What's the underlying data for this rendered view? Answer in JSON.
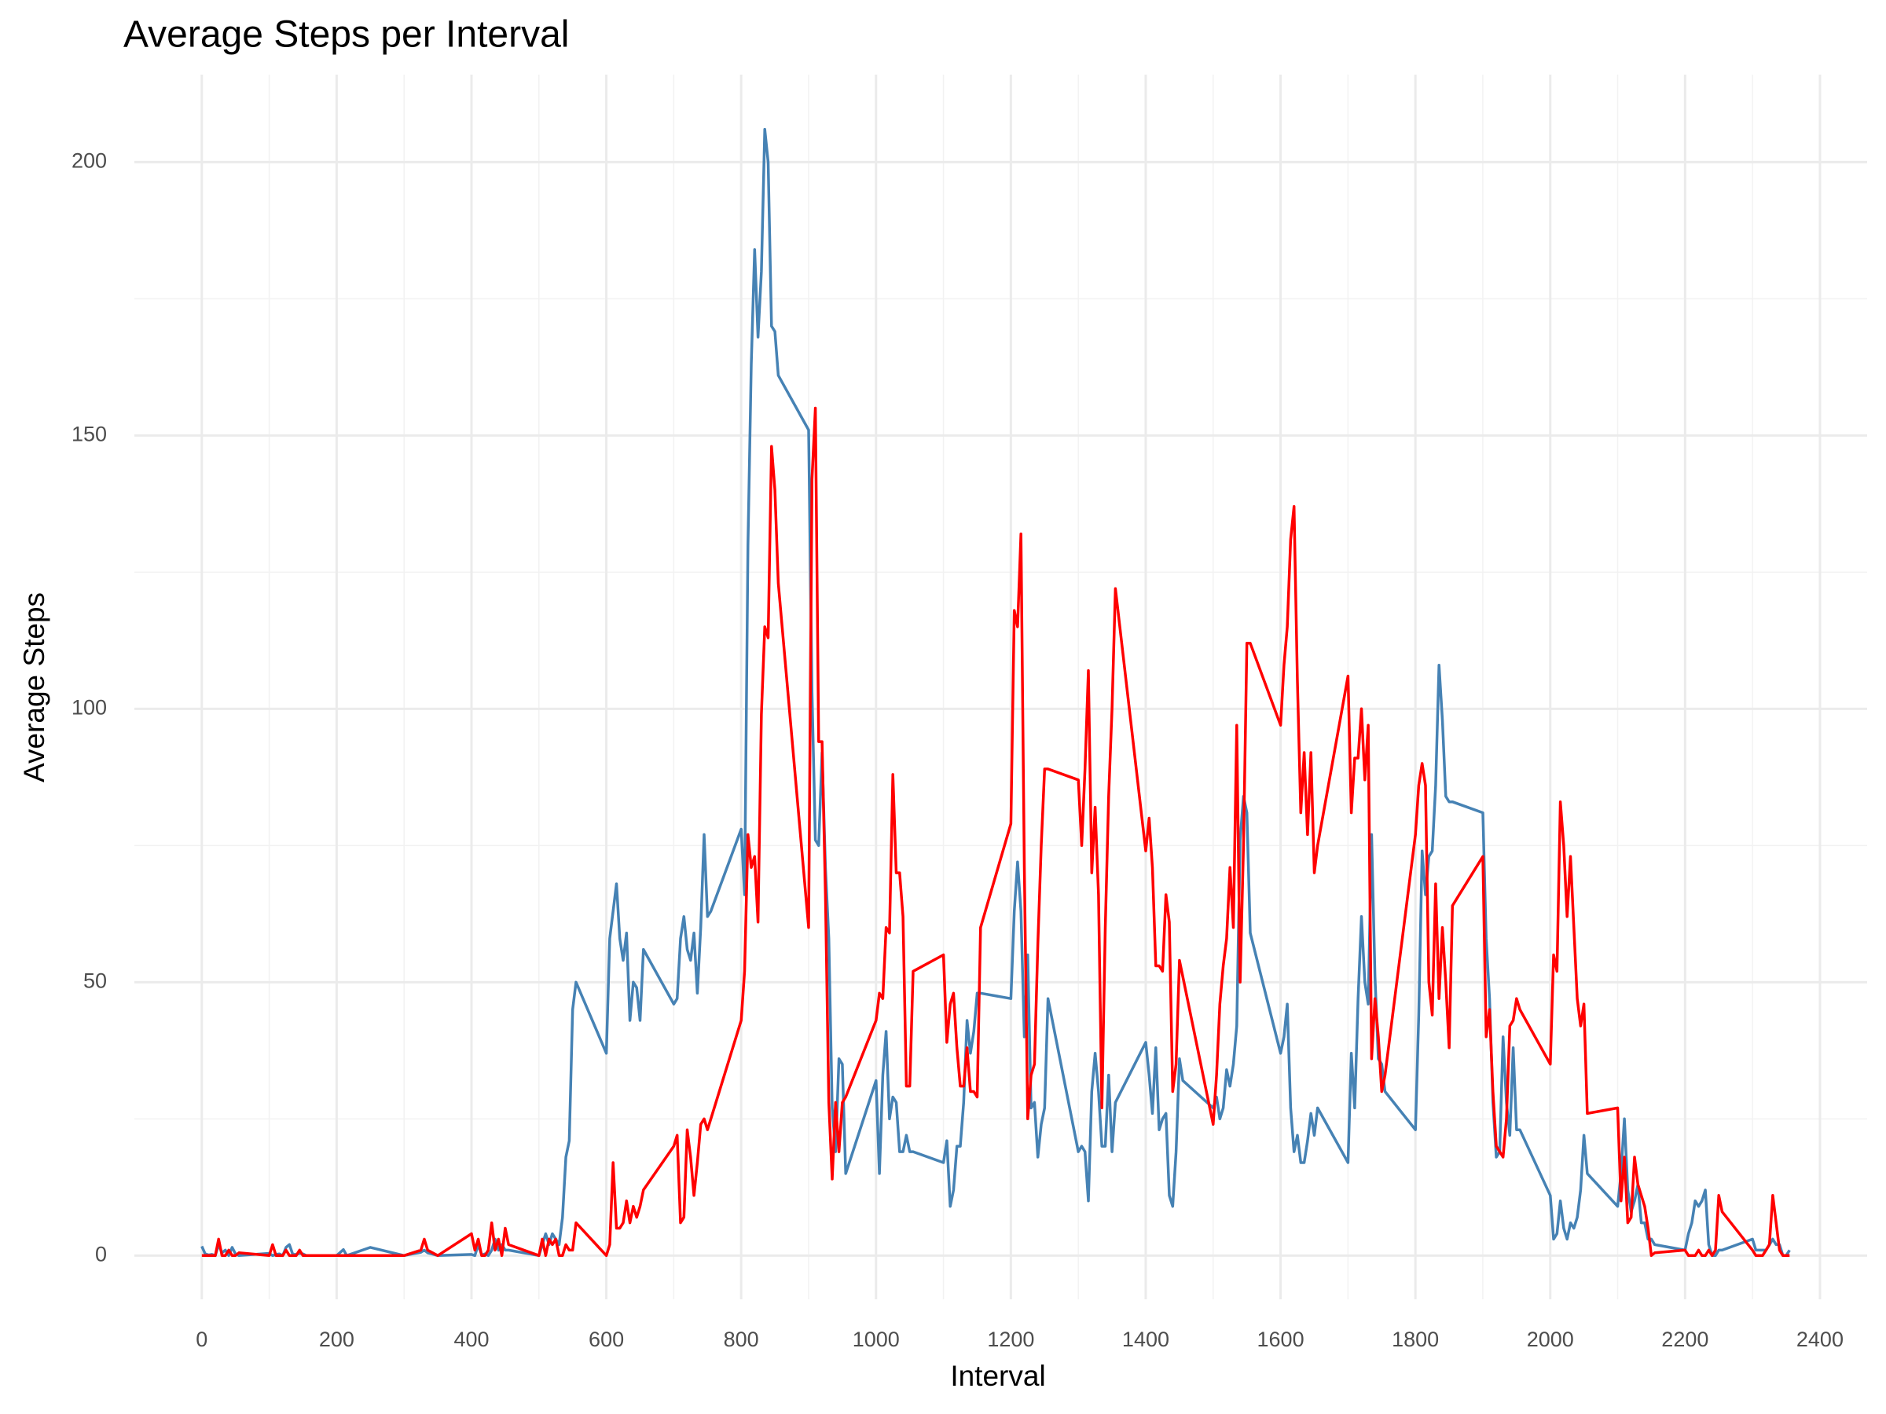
{
  "chart_data": {
    "type": "line",
    "title": "Average Steps per Interval",
    "x_label": "Interval",
    "y_label": "Average Steps",
    "x": [
      0,
      5,
      10,
      15,
      20,
      25,
      30,
      35,
      40,
      45,
      50,
      55,
      100,
      105,
      110,
      115,
      120,
      125,
      130,
      135,
      140,
      145,
      150,
      155,
      200,
      210,
      215,
      250,
      300,
      325,
      330,
      335,
      350,
      400,
      405,
      410,
      415,
      420,
      425,
      430,
      435,
      440,
      445,
      450,
      455,
      500,
      505,
      510,
      515,
      520,
      525,
      530,
      535,
      540,
      545,
      550,
      555,
      600,
      605,
      610,
      615,
      620,
      625,
      630,
      635,
      640,
      645,
      650,
      655,
      700,
      705,
      710,
      715,
      720,
      725,
      730,
      735,
      740,
      745,
      750,
      755,
      800,
      805,
      810,
      815,
      820,
      825,
      830,
      835,
      840,
      845,
      850,
      855,
      900,
      905,
      910,
      915,
      920,
      925,
      930,
      935,
      940,
      945,
      950,
      955,
      1000,
      1005,
      1010,
      1015,
      1020,
      1025,
      1030,
      1035,
      1040,
      1045,
      1050,
      1055,
      1100,
      1105,
      1110,
      1115,
      1120,
      1125,
      1130,
      1135,
      1140,
      1145,
      1150,
      1155,
      1200,
      1205,
      1210,
      1215,
      1220,
      1225,
      1230,
      1235,
      1240,
      1245,
      1250,
      1255,
      1300,
      1305,
      1310,
      1315,
      1320,
      1325,
      1330,
      1335,
      1340,
      1345,
      1350,
      1355,
      1400,
      1405,
      1410,
      1415,
      1420,
      1425,
      1430,
      1435,
      1440,
      1445,
      1450,
      1455,
      1500,
      1505,
      1510,
      1515,
      1520,
      1525,
      1530,
      1535,
      1540,
      1545,
      1550,
      1555,
      1600,
      1605,
      1610,
      1615,
      1620,
      1625,
      1630,
      1635,
      1640,
      1645,
      1650,
      1655,
      1700,
      1705,
      1710,
      1715,
      1720,
      1725,
      1730,
      1735,
      1740,
      1745,
      1750,
      1755,
      1800,
      1805,
      1810,
      1815,
      1820,
      1825,
      1830,
      1835,
      1840,
      1845,
      1850,
      1855,
      1900,
      1905,
      1910,
      1915,
      1920,
      1925,
      1930,
      1935,
      1940,
      1945,
      1950,
      1955,
      2000,
      2005,
      2010,
      2015,
      2020,
      2025,
      2030,
      2035,
      2040,
      2045,
      2050,
      2055,
      2100,
      2105,
      2110,
      2115,
      2120,
      2125,
      2130,
      2135,
      2140,
      2145,
      2150,
      2155,
      2200,
      2205,
      2210,
      2215,
      2220,
      2225,
      2230,
      2235,
      2240,
      2245,
      2250,
      2255,
      2300,
      2305,
      2310,
      2315,
      2320,
      2325,
      2330,
      2335,
      2340,
      2345,
      2350,
      2355
    ],
    "series": [
      {
        "color": "#4682b4",
        "values": [
          1.7,
          0.3,
          0.1,
          0.2,
          0,
          2,
          0.5,
          1,
          0,
          1.5,
          0.3,
          0,
          0.4,
          0,
          0.2,
          0.3,
          0,
          1.5,
          2,
          0.2,
          0.2,
          0.4,
          0.3,
          0,
          0,
          1.1,
          0,
          1.5,
          0,
          0.6,
          1,
          0.5,
          0,
          0.2,
          0,
          2,
          0.1,
          0.3,
          0,
          1,
          3,
          1,
          2,
          1,
          1,
          0,
          2,
          4,
          2,
          4,
          3,
          2,
          7,
          18,
          21,
          45,
          50,
          37,
          58,
          63,
          68,
          58,
          54,
          59,
          43,
          50,
          49,
          43,
          56,
          46,
          47,
          58,
          62,
          56,
          54,
          59,
          48,
          60,
          77,
          62,
          63,
          78,
          66,
          130,
          163,
          184,
          168,
          180,
          206,
          200,
          170,
          169,
          161,
          151,
          103,
          76,
          75,
          92,
          71,
          58,
          27,
          19,
          36,
          35,
          15,
          32,
          15,
          33,
          41,
          25,
          29,
          28,
          19,
          19,
          22,
          19,
          19,
          17,
          21,
          9,
          12,
          20,
          20,
          28,
          43,
          37,
          41,
          48,
          48,
          47,
          63,
          72,
          63,
          40,
          55,
          27,
          28,
          18,
          24,
          27,
          47,
          19,
          20,
          19,
          10,
          30,
          37,
          30,
          20,
          20,
          33,
          19,
          28,
          39,
          33,
          26,
          38,
          23,
          25,
          26,
          11,
          9,
          19,
          36,
          32,
          27,
          29,
          25,
          27,
          34,
          31,
          35,
          42,
          76,
          84,
          81,
          59,
          37,
          40,
          46,
          27,
          19,
          22,
          17,
          17,
          21,
          26,
          22,
          27,
          17,
          37,
          27,
          47,
          62,
          50,
          46,
          77,
          51,
          36,
          35,
          30,
          23,
          44,
          74,
          66,
          73,
          74,
          86,
          108,
          98,
          84,
          83,
          83,
          81,
          58,
          47,
          28,
          18,
          19,
          40,
          28,
          22,
          38,
          23,
          23,
          11,
          3,
          4,
          10,
          5,
          3,
          6,
          5,
          7,
          12,
          22,
          15,
          9,
          15,
          25,
          12,
          8,
          10,
          13,
          6,
          6,
          3,
          3,
          2,
          1,
          4,
          6,
          10,
          9,
          10,
          12,
          2,
          0,
          0,
          1,
          1,
          3,
          1,
          1,
          1,
          1,
          2,
          3,
          2,
          2,
          0,
          0,
          1
        ]
      },
      {
        "color": "#ff0000",
        "values": [
          0,
          0,
          0,
          0,
          0,
          3,
          0,
          0,
          1,
          0,
          0,
          0.5,
          0,
          2,
          0,
          0,
          0,
          1,
          0,
          0,
          0,
          1,
          0,
          0,
          0,
          0,
          0,
          0,
          0,
          1,
          3,
          1,
          0,
          4,
          1,
          3,
          0,
          0,
          1,
          6,
          1,
          3,
          0,
          5,
          2,
          0,
          3,
          0,
          3,
          2,
          3,
          0,
          0,
          2,
          1,
          1,
          6,
          0,
          2,
          17,
          5,
          5,
          6,
          10,
          6,
          9,
          7,
          9,
          12,
          20,
          22,
          6,
          7,
          23,
          18,
          11,
          17,
          24,
          25,
          23,
          25,
          43,
          52,
          77,
          71,
          73,
          61,
          99,
          115,
          113,
          148,
          140,
          123,
          60,
          142,
          155,
          94,
          94,
          66,
          28,
          14,
          28,
          19,
          28,
          29,
          43,
          48,
          47,
          60,
          59,
          88,
          70,
          70,
          62,
          31,
          31,
          52,
          55,
          39,
          46,
          48,
          38,
          31,
          31,
          38,
          30,
          30,
          29,
          60,
          79,
          118,
          115,
          132,
          71,
          25,
          33,
          35,
          57,
          75,
          89,
          89,
          87,
          75,
          89,
          107,
          70,
          82,
          66,
          27,
          60,
          84,
          100,
          122,
          74,
          80,
          71,
          53,
          53,
          52,
          66,
          61,
          30,
          35,
          54,
          51,
          24,
          33,
          46,
          53,
          58,
          71,
          60,
          97,
          50,
          75,
          112,
          112,
          97,
          108,
          115,
          131,
          137,
          105,
          81,
          92,
          77,
          92,
          70,
          75,
          106,
          81,
          91,
          91,
          100,
          87,
          97,
          36,
          47,
          40,
          30,
          33,
          77,
          86,
          90,
          86,
          50,
          44,
          68,
          47,
          60,
          50,
          38,
          64,
          73,
          40,
          45,
          30,
          20,
          19,
          18,
          25,
          42,
          43,
          47,
          45,
          35,
          55,
          52,
          83,
          75,
          62,
          73,
          60,
          47,
          42,
          46,
          26,
          27,
          10,
          18,
          6,
          7,
          18,
          13,
          11,
          9,
          5,
          0,
          0.5,
          1,
          0,
          0,
          0,
          1,
          0,
          0,
          1,
          0,
          1,
          11,
          8,
          1,
          0,
          0,
          0,
          1,
          2,
          11,
          6,
          1,
          0,
          0,
          0
        ]
      }
    ],
    "xlim": [
      -100,
      2470
    ],
    "ylim": [
      -8,
      216
    ],
    "xticks": [
      0,
      200,
      400,
      600,
      800,
      1000,
      1200,
      1400,
      1600,
      1800,
      2000,
      2200,
      2400
    ],
    "yticks": [
      0,
      50,
      100,
      150,
      200
    ],
    "grid": true,
    "minor_grid": true
  }
}
